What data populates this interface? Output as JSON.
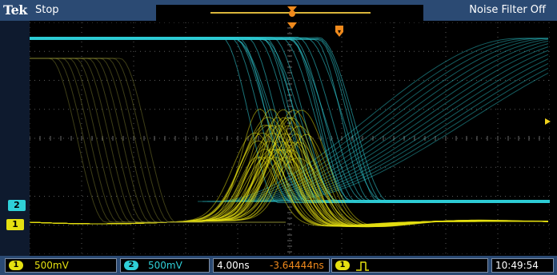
{
  "header": {
    "brand": "Tek",
    "run_state": "Stop",
    "noise_filter": "Noise Filter Off"
  },
  "channels": [
    {
      "number": "1",
      "scale": "500mV",
      "color": "#e5e011"
    },
    {
      "number": "2",
      "scale": "500mV",
      "color": "#2fd0d8"
    }
  ],
  "timebase": {
    "scale": "4.00ns",
    "delay": "-3.64444ns"
  },
  "trigger": {
    "source": "1",
    "type_icon": "rising-edge-icon"
  },
  "clock": "10:49:54",
  "colors": {
    "ch1": "#e5e011",
    "ch2": "#2fd0d8",
    "trigger_marker": "#f08a1c",
    "bar": "#2b4a73"
  }
}
